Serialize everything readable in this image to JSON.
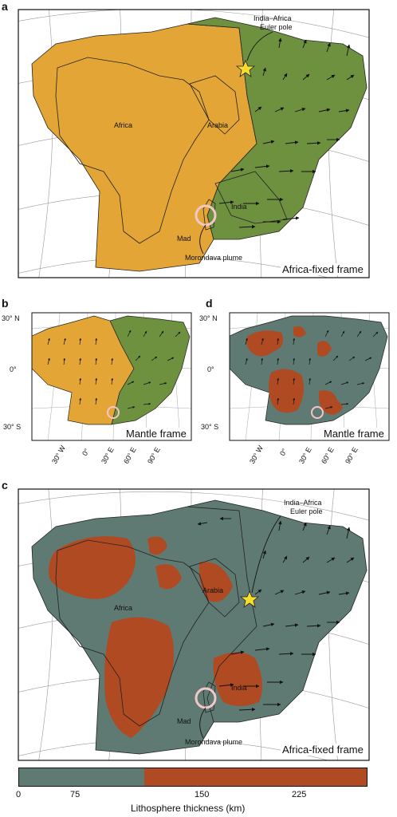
{
  "panels": {
    "a": {
      "letter": "a",
      "frame_label": "Africa-fixed frame",
      "labels": {
        "euler_pole": [
          "India–Africa",
          "Euler pole"
        ],
        "africa": "Africa",
        "arabia": "Arabia",
        "india": "India",
        "mad": "Mad",
        "plume": "Morondava plume"
      }
    },
    "b": {
      "letter": "b",
      "frame_label": "Mantle frame",
      "lat_labels": [
        "30° N",
        "0°",
        "30° S"
      ],
      "lon_labels": [
        "30° W",
        "0°",
        "30° E",
        "60° E",
        "90° E"
      ]
    },
    "d": {
      "letter": "d",
      "frame_label": "Mantle frame",
      "lat_labels": [
        "30° N",
        "0°",
        "30° S"
      ],
      "lon_labels": [
        "30° W",
        "0°",
        "30° E",
        "60° E",
        "90° E"
      ]
    },
    "c": {
      "letter": "c",
      "frame_label": "Africa-fixed frame",
      "labels": {
        "euler_pole": [
          "India–Africa",
          "Euler pole"
        ],
        "africa": "Africa",
        "arabia": "Arabia",
        "india": "India",
        "mad": "Mad",
        "plume": "Morondava plume"
      }
    }
  },
  "colorbar": {
    "ticks": [
      "0",
      "75",
      "150",
      "225"
    ],
    "title": "Lithosphere thickness (km)",
    "low_color": "#5e7a72",
    "high_color": "#b04a22"
  },
  "colors": {
    "africa_plate": "#e3a535",
    "india_plate": "#6e9140",
    "thin_lithosphere": "#5e7a72",
    "thick_lithosphere": "#b04a22",
    "star": "#f7dd2c"
  }
}
